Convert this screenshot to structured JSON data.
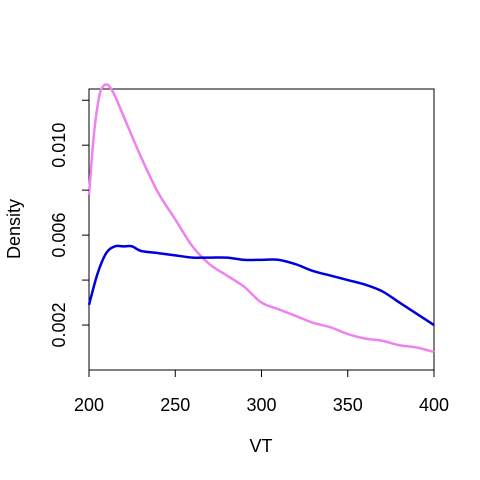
{
  "chart_data": {
    "type": "line",
    "title": "",
    "xlabel": "VT",
    "ylabel": "Density",
    "xlim": [
      200,
      400
    ],
    "ylim": [
      0.0,
      0.0125
    ],
    "x_ticks": [
      200,
      250,
      300,
      350,
      400
    ],
    "x_tick_labels": [
      "200",
      "250",
      "300",
      "350",
      "400"
    ],
    "y_ticks": [
      0.002,
      0.004,
      0.006,
      0.008,
      0.01,
      0.012
    ],
    "y_tick_labels": [
      "0.002",
      "",
      "0.006",
      "",
      "0.010",
      ""
    ],
    "grid": false,
    "series": [
      {
        "color": "#ee82ee",
        "x": [
          200,
          203,
          206,
          208,
          210,
          212,
          215,
          220,
          230,
          240,
          250,
          260,
          270,
          280,
          290,
          300,
          310,
          320,
          330,
          340,
          350,
          360,
          370,
          380,
          390,
          400
        ],
        "y": [
          0.0078,
          0.0106,
          0.0122,
          0.0126,
          0.0127,
          0.0126,
          0.0122,
          0.0113,
          0.0095,
          0.0079,
          0.0067,
          0.0055,
          0.0047,
          0.0042,
          0.0037,
          0.003,
          0.0027,
          0.0024,
          0.0021,
          0.0019,
          0.0016,
          0.0014,
          0.0013,
          0.0011,
          0.001,
          0.0008
        ]
      },
      {
        "color": "#0000dd",
        "x": [
          200,
          205,
          210,
          215,
          220,
          225,
          230,
          240,
          250,
          260,
          270,
          280,
          290,
          300,
          310,
          320,
          330,
          340,
          350,
          360,
          370,
          380,
          390,
          400
        ],
        "y": [
          0.0029,
          0.0043,
          0.0052,
          0.0055,
          0.0055,
          0.0055,
          0.0053,
          0.0052,
          0.0051,
          0.005,
          0.005,
          0.005,
          0.0049,
          0.0049,
          0.0049,
          0.0047,
          0.0044,
          0.0042,
          0.004,
          0.0038,
          0.0035,
          0.003,
          0.0025,
          0.002
        ]
      }
    ]
  }
}
